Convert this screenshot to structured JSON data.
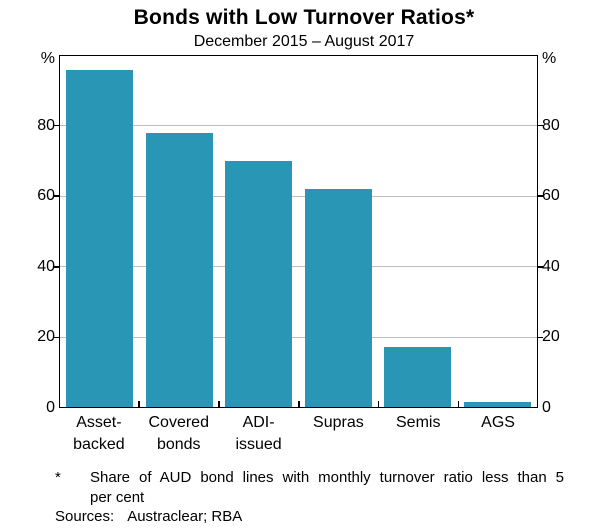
{
  "chart_data": {
    "type": "bar",
    "title": "Bonds with Low Turnover Ratios*",
    "subtitle": "December 2015 – August 2017",
    "unit_left": "%",
    "unit_right": "%",
    "ylim": [
      0,
      100
    ],
    "yticks": [
      0,
      20,
      40,
      60,
      80
    ],
    "grid": true,
    "legend_position": "none",
    "categories": [
      "Asset-\nbacked",
      "Covered\nbonds",
      "ADI-\nissued",
      "Supras",
      "Semis",
      "AGS"
    ],
    "values": [
      96,
      78,
      70,
      62,
      17,
      1.5
    ],
    "bar_color": "#2a96b6",
    "gridline_color": "#bfbfbf",
    "axis_color": "#000000"
  },
  "footnote": {
    "marker": "*",
    "text": "Share of AUD bond lines with monthly turnover ratio less than 5 per cent",
    "lines": [
      "Share of AUD bond lines with monthly turnover ratio less than 5",
      "per cent"
    ]
  },
  "sources": {
    "label": "Sources:",
    "value": "Austraclear; RBA"
  }
}
